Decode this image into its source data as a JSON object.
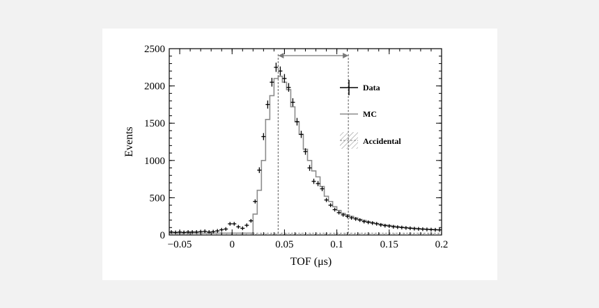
{
  "chart_data": {
    "type": "histogram",
    "xlabel": "TOF (μs)",
    "ylabel": "Events",
    "xlim": [
      -0.06,
      0.2
    ],
    "ylim": [
      0,
      2500
    ],
    "x_ticks": [
      -0.05,
      0,
      0.05,
      0.1,
      0.15,
      0.2
    ],
    "x_tick_labels": [
      "−0.05",
      "0",
      "0.05",
      "0.1",
      "0.15",
      "0.2"
    ],
    "y_ticks": [
      0,
      500,
      1000,
      1500,
      2000,
      2500
    ],
    "y_tick_labels": [
      "0",
      "500",
      "1000",
      "1500",
      "2000",
      "2500"
    ],
    "grid": false,
    "legend": [
      "Data",
      "MC",
      "Accidental"
    ],
    "legend_position": "top-right",
    "bin_width": 0.004,
    "selection_window": [
      0.044,
      0.111
    ],
    "series": [
      {
        "name": "Data",
        "style": "points-with-error-bars",
        "x": [
          -0.058,
          -0.054,
          -0.05,
          -0.046,
          -0.042,
          -0.038,
          -0.034,
          -0.03,
          -0.026,
          -0.022,
          -0.018,
          -0.014,
          -0.01,
          -0.006,
          -0.002,
          0.002,
          0.006,
          0.01,
          0.014,
          0.018,
          0.022,
          0.026,
          0.03,
          0.034,
          0.038,
          0.042,
          0.046,
          0.05,
          0.054,
          0.058,
          0.062,
          0.066,
          0.07,
          0.074,
          0.078,
          0.082,
          0.086,
          0.09,
          0.094,
          0.098,
          0.102,
          0.106,
          0.11,
          0.114,
          0.118,
          0.122,
          0.126,
          0.13,
          0.134,
          0.138,
          0.142,
          0.146,
          0.15,
          0.154,
          0.158,
          0.162,
          0.166,
          0.17,
          0.174,
          0.178,
          0.182,
          0.186,
          0.19,
          0.194,
          0.198
        ],
        "y": [
          40,
          35,
          40,
          35,
          40,
          40,
          40,
          45,
          50,
          40,
          45,
          55,
          70,
          80,
          150,
          150,
          110,
          90,
          130,
          190,
          450,
          870,
          1320,
          1750,
          2050,
          2250,
          2200,
          2100,
          1980,
          1780,
          1520,
          1350,
          1120,
          900,
          720,
          690,
          620,
          470,
          400,
          340,
          300,
          270,
          250,
          230,
          215,
          200,
          180,
          170,
          160,
          150,
          135,
          125,
          120,
          110,
          105,
          100,
          95,
          90,
          85,
          82,
          78,
          75,
          72,
          70,
          68
        ]
      },
      {
        "name": "MC",
        "style": "step",
        "x": [
          -0.058,
          -0.054,
          -0.05,
          -0.046,
          -0.042,
          -0.038,
          -0.034,
          -0.03,
          -0.026,
          -0.022,
          -0.018,
          -0.014,
          -0.01,
          -0.006,
          -0.002,
          0.002,
          0.006,
          0.01,
          0.014,
          0.018,
          0.022,
          0.026,
          0.03,
          0.034,
          0.038,
          0.042,
          0.046,
          0.05,
          0.054,
          0.058,
          0.062,
          0.066,
          0.07,
          0.074,
          0.078,
          0.082,
          0.086,
          0.09,
          0.094,
          0.098,
          0.102,
          0.106,
          0.11,
          0.114,
          0.118,
          0.122,
          0.126,
          0.13,
          0.134,
          0.138,
          0.142,
          0.146,
          0.15,
          0.154,
          0.158,
          0.162,
          0.166,
          0.17,
          0.174,
          0.178,
          0.182,
          0.186,
          0.19,
          0.194,
          0.198
        ],
        "y": [
          25,
          25,
          25,
          25,
          25,
          25,
          25,
          25,
          25,
          25,
          25,
          25,
          25,
          25,
          25,
          25,
          25,
          25,
          25,
          25,
          280,
          600,
          1000,
          1550,
          1870,
          2100,
          2130,
          2050,
          1950,
          1720,
          1520,
          1350,
          1150,
          1000,
          860,
          780,
          650,
          520,
          450,
          380,
          330,
          290,
          270,
          250,
          230,
          210,
          195,
          180,
          168,
          155,
          145,
          135,
          128,
          120,
          112,
          106,
          100,
          95,
          90,
          86,
          82,
          78,
          75,
          72,
          70
        ]
      },
      {
        "name": "Accidental",
        "style": "hatched-flat",
        "level": 25
      }
    ]
  }
}
